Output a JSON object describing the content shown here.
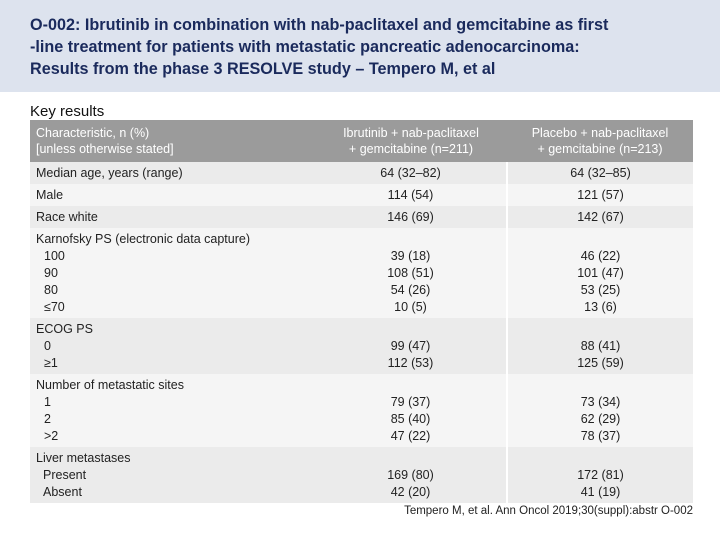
{
  "header": {
    "title_lines": [
      "O-002: Ibrutinib in combination with nab-paclitaxel and gemcitabine as first",
      "-line treatment for patients with metastatic pancreatic adenocarcinoma:",
      "Results from the phase 3 RESOLVE study – Tempero M, et al"
    ]
  },
  "section_label": "Key results",
  "table": {
    "headers": {
      "col1": [
        "Characteristic, n (%)",
        "[unless otherwise stated]"
      ],
      "col2": [
        "Ibrutinib + nab-paclitaxel",
        "+ gemcitabine (n=211)"
      ],
      "col3": [
        "Placebo + nab-paclitaxel",
        "+ gemcitabine (n=213)"
      ]
    },
    "rows": [
      {
        "label": "Median age, years (range)",
        "ibrutinib": "64 (32–82)",
        "placebo": "64 (32–85)"
      },
      {
        "label": "Male",
        "ibrutinib": "114 (54)",
        "placebo": "121 (57)"
      },
      {
        "label": "Race white",
        "ibrutinib": "146 (69)",
        "placebo": "142 (67)"
      },
      {
        "label": "Karnofsky PS (electronic data capture)",
        "sublabels": [
          "100",
          "90",
          "80",
          "≤70"
        ],
        "ibrutinib": [
          "39 (18)",
          "108 (51)",
          "54 (26)",
          "10 (5)"
        ],
        "placebo": [
          "46 (22)",
          "101 (47)",
          "53 (25)",
          "13 (6)"
        ]
      },
      {
        "label": "ECOG PS",
        "sublabels": [
          "0",
          "≥1"
        ],
        "ibrutinib": [
          "99 (47)",
          "112 (53)"
        ],
        "placebo": [
          "88 (41)",
          "125 (59)"
        ]
      },
      {
        "label": "Number of metastatic sites",
        "sublabels": [
          "1",
          "2",
          ">2"
        ],
        "ibrutinib": [
          "79 (37)",
          "85 (40)",
          "47 (22)"
        ],
        "placebo": [
          "73 (34)",
          "62 (29)",
          "78 (37)"
        ]
      },
      {
        "label": "Liver metastases",
        "sublabels": [
          "Present",
          "Absent"
        ],
        "ibrutinib": [
          "169 (80)",
          "42 (20)"
        ],
        "placebo": [
          "172 (81)",
          "41 (19)"
        ]
      }
    ]
  },
  "footer": "Tempero M, et al. Ann Oncol 2019;30(suppl):abstr O-002"
}
